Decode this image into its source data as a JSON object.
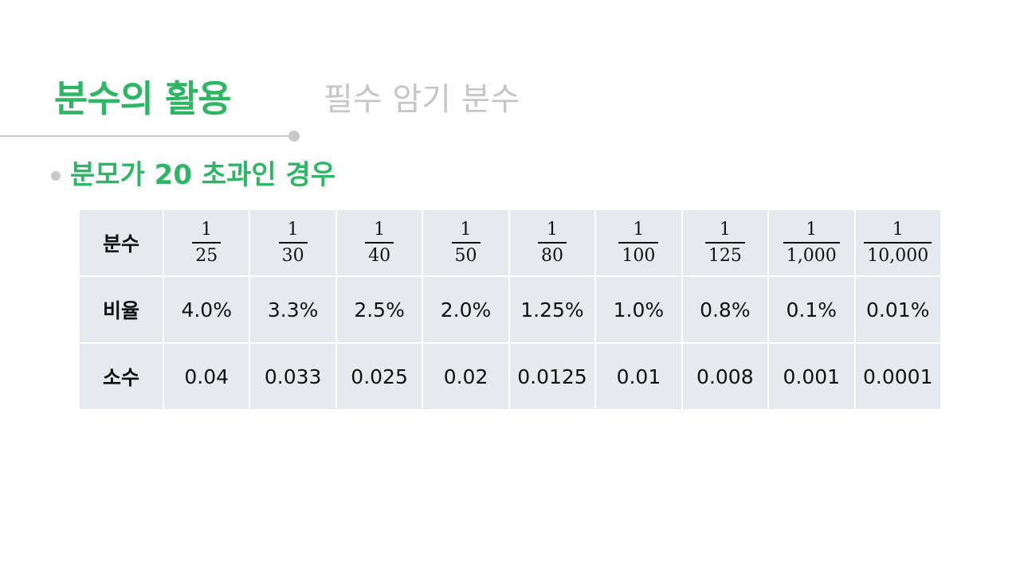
{
  "header": {
    "title": "분수의 활용",
    "subtitle": "필수 암기 분수"
  },
  "section": {
    "heading": "분모가 20 초과인 경우"
  },
  "table": {
    "rows": {
      "fraction": {
        "label": "분수",
        "cells": [
          {
            "num": "1",
            "den": "25"
          },
          {
            "num": "1",
            "den": "30"
          },
          {
            "num": "1",
            "den": "40"
          },
          {
            "num": "1",
            "den": "50"
          },
          {
            "num": "1",
            "den": "80"
          },
          {
            "num": "1",
            "den": "100"
          },
          {
            "num": "1",
            "den": "125"
          },
          {
            "num": "1",
            "den": "1,000"
          },
          {
            "num": "1",
            "den": "10,000"
          }
        ]
      },
      "ratio": {
        "label": "비율",
        "cells": [
          "4.0%",
          "3.3%",
          "2.5%",
          "2.0%",
          "1.25%",
          "1.0%",
          "0.8%",
          "0.1%",
          "0.01%"
        ]
      },
      "decimal": {
        "label": "소수",
        "cells": [
          "0.04",
          "0.033",
          "0.025",
          "0.02",
          "0.0125",
          "0.01",
          "0.008",
          "0.001",
          "0.0001"
        ]
      }
    }
  },
  "colors": {
    "accent": "#2db765",
    "muted": "#c6c6c6",
    "cell_bg": "#e6eaee"
  }
}
